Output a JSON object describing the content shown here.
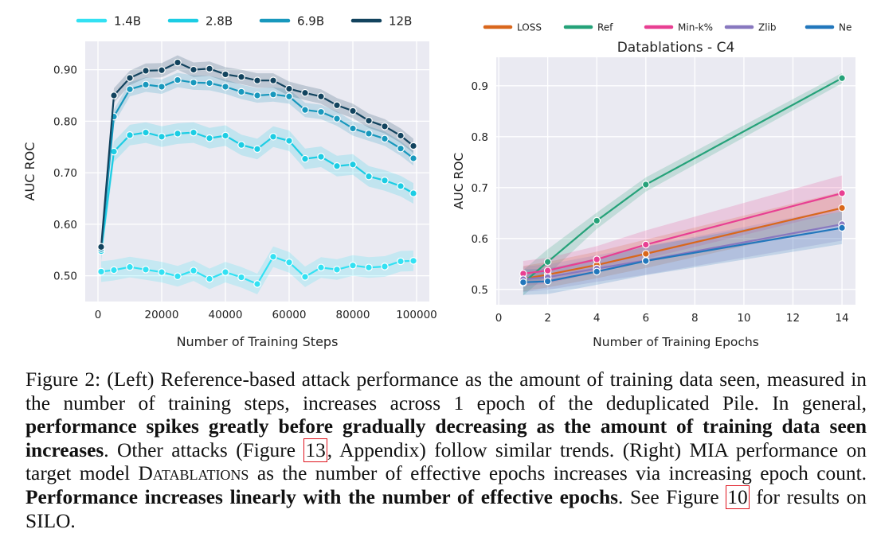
{
  "chart_data": [
    {
      "type": "line",
      "title": "",
      "xlabel": "Number of Training Steps",
      "ylabel": "AUC ROC",
      "xlim": [
        -4000,
        104000
      ],
      "ylim": [
        0.45,
        0.955
      ],
      "xticks": [
        0,
        20000,
        40000,
        60000,
        80000,
        100000
      ],
      "xtick_labels": [
        "0",
        "20000",
        "40000",
        "60000",
        "80000",
        "100000"
      ],
      "yticks": [
        0.5,
        0.6,
        0.7,
        0.8,
        0.9
      ],
      "ytick_labels": [
        "0.50",
        "0.60",
        "0.70",
        "0.80",
        "0.90"
      ],
      "legend": "top",
      "x": [
        1000,
        5000,
        10000,
        15000,
        20000,
        25000,
        30000,
        35000,
        40000,
        45000,
        50000,
        55000,
        60000,
        65000,
        70000,
        75000,
        80000,
        85000,
        90000,
        95000,
        99000
      ],
      "series": [
        {
          "name": "1.4B",
          "color": "#33e1f3",
          "band": 0.02,
          "values": [
            0.508,
            0.511,
            0.517,
            0.512,
            0.507,
            0.499,
            0.51,
            0.494,
            0.507,
            0.497,
            0.484,
            0.537,
            0.526,
            0.498,
            0.516,
            0.512,
            0.52,
            0.516,
            0.518,
            0.528,
            0.529
          ]
        },
        {
          "name": "2.8B",
          "color": "#1ccde4",
          "band": 0.02,
          "values": [
            0.548,
            0.741,
            0.773,
            0.778,
            0.77,
            0.776,
            0.778,
            0.767,
            0.772,
            0.754,
            0.746,
            0.77,
            0.762,
            0.727,
            0.731,
            0.713,
            0.716,
            0.693,
            0.685,
            0.674,
            0.66
          ]
        },
        {
          "name": "6.9B",
          "color": "#1898bd",
          "band": 0.014,
          "values": [
            0.552,
            0.809,
            0.862,
            0.871,
            0.867,
            0.88,
            0.875,
            0.874,
            0.867,
            0.857,
            0.85,
            0.852,
            0.848,
            0.822,
            0.818,
            0.805,
            0.786,
            0.776,
            0.766,
            0.747,
            0.728
          ]
        },
        {
          "name": "12B",
          "color": "#12435e",
          "band": 0.014,
          "values": [
            0.556,
            0.85,
            0.884,
            0.898,
            0.899,
            0.914,
            0.9,
            0.902,
            0.891,
            0.886,
            0.879,
            0.879,
            0.863,
            0.855,
            0.848,
            0.831,
            0.82,
            0.801,
            0.79,
            0.772,
            0.752
          ]
        }
      ]
    },
    {
      "type": "line",
      "title": "Datablations - C4",
      "xlabel": "Number of Training Epochs",
      "ylabel": "AUC ROC",
      "xlim": [
        -0.1,
        14.55
      ],
      "ylim": [
        0.47,
        0.956
      ],
      "xticks": [
        0,
        2,
        4,
        6,
        8,
        10,
        12,
        14
      ],
      "xtick_labels": [
        "0",
        "2",
        "4",
        "6",
        "8",
        "10",
        "12",
        "14"
      ],
      "yticks": [
        0.5,
        0.6,
        0.7,
        0.8,
        0.9
      ],
      "ytick_labels": [
        "0.5",
        "0.6",
        "0.7",
        "0.8",
        "0.9"
      ],
      "legend": "top",
      "x": [
        1,
        2,
        4,
        6,
        14
      ],
      "series": [
        {
          "name": "LOSS",
          "color": "#d9671c",
          "band": [
            0.025,
            0.025,
            0.026,
            0.028,
            0.032
          ],
          "values": [
            0.521,
            0.529,
            0.548,
            0.57,
            0.66
          ]
        },
        {
          "name": "Ref",
          "color": "#25a279",
          "band": [
            0.025,
            0.025,
            0.016,
            0.014,
            0.01
          ],
          "values": [
            0.513,
            0.554,
            0.635,
            0.706,
            0.915
          ]
        },
        {
          "name": "Min-k%",
          "color": "#e83f92",
          "band": [
            0.025,
            0.025,
            0.026,
            0.028,
            0.035
          ],
          "values": [
            0.531,
            0.537,
            0.559,
            0.588,
            0.689
          ]
        },
        {
          "name": "Zlib",
          "color": "#8878bf",
          "band": [
            0.025,
            0.025,
            0.026,
            0.028,
            0.032
          ],
          "values": [
            0.52,
            0.524,
            0.541,
            0.557,
            0.628
          ]
        },
        {
          "name": "Ne",
          "color": "#2277bc",
          "band": [
            0.025,
            0.025,
            0.026,
            0.028,
            0.032
          ],
          "values": [
            0.514,
            0.516,
            0.535,
            0.556,
            0.621
          ]
        }
      ]
    }
  ],
  "caption": {
    "p1": "Figure 2: (Left) Reference-based attack performance as the amount of training data seen, measured in the number of training steps, increases across 1 epoch of the deduplicated Pile. In general, ",
    "b1": "performance spikes greatly before gradually decreasing as the amount of training data seen increases",
    "p2": ". Other attacks (Figure ",
    "ref1": "13",
    "p3": ", Appendix) follow similar trends. (Right) MIA performance on target model ",
    "model": "Datablations",
    "p4": " as the number of effective epochs increases via increasing epoch count. ",
    "b2": "Performance increases linearly with the number of effective epochs",
    "p5": ". See Figure ",
    "ref2": "10",
    "p6": " for results on SILO."
  }
}
